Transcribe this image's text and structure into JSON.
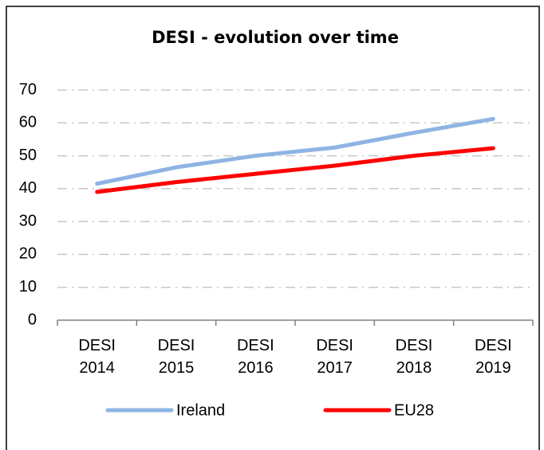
{
  "chart_data": {
    "type": "line",
    "title": "DESI - evolution over time",
    "categories": [
      "DESI 2014",
      "DESI 2015",
      "DESI 2016",
      "DESI 2017",
      "DESI 2018",
      "DESI 2019"
    ],
    "series": [
      {
        "name": "Ireland",
        "color": "#8eb4e3",
        "values": [
          41.5,
          46.5,
          50,
          52.5,
          57,
          61.2
        ]
      },
      {
        "name": "EU28",
        "color": "#ff0000",
        "values": [
          39,
          42,
          44.5,
          47,
          50,
          52.3
        ]
      }
    ],
    "ylim": [
      0,
      70
    ],
    "yticks": [
      0,
      10,
      20,
      30,
      40,
      50,
      60,
      70
    ],
    "grid": true,
    "legend": "bottom"
  }
}
